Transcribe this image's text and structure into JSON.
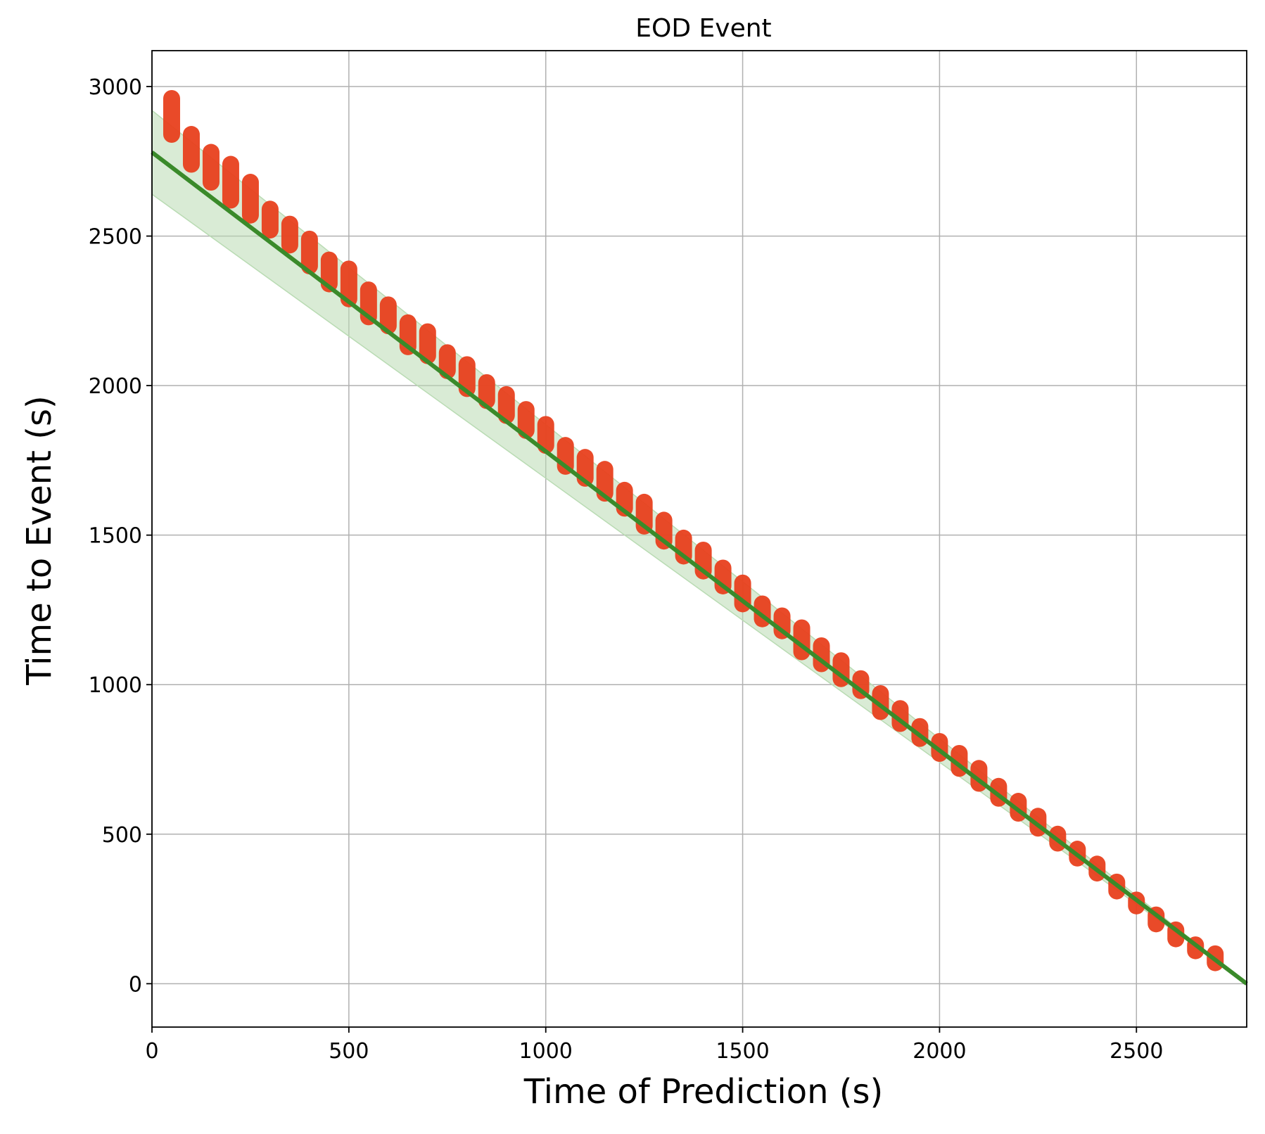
{
  "chart_data": {
    "type": "scatter",
    "title": "EOD Event",
    "xlabel": "Time of Prediction (s)",
    "ylabel": "Time to Event (s)",
    "xlim": [
      0,
      2780
    ],
    "ylim": [
      -145,
      3120
    ],
    "xticks": [
      0,
      500,
      1000,
      1500,
      2000,
      2500
    ],
    "yticks": [
      0,
      500,
      1000,
      1500,
      2000,
      2500,
      3000
    ],
    "grid": true,
    "colors": {
      "scatter": "#e8401e",
      "line": "#3a8a2a",
      "band": "#b9dbb3",
      "grid": "#b0b0b0"
    },
    "true_line": {
      "x": [
        0,
        2780
      ],
      "y": [
        2780,
        0
      ]
    },
    "band": {
      "x": [
        0,
        2780
      ],
      "upper": [
        2920,
        0
      ],
      "lower": [
        2640,
        0
      ]
    },
    "scatter_series": {
      "x": [
        50,
        100,
        150,
        200,
        250,
        300,
        350,
        400,
        450,
        500,
        550,
        600,
        650,
        700,
        750,
        800,
        850,
        900,
        950,
        1000,
        1050,
        1100,
        1150,
        1200,
        1250,
        1300,
        1350,
        1400,
        1450,
        1500,
        1550,
        1600,
        1650,
        1700,
        1750,
        1800,
        1850,
        1900,
        1950,
        2000,
        2050,
        2100,
        2150,
        2200,
        2250,
        2300,
        2350,
        2400,
        2450,
        2500,
        2550,
        2600,
        2650,
        2700
      ],
      "y_min": [
        2840,
        2740,
        2680,
        2620,
        2570,
        2520,
        2470,
        2400,
        2340,
        2290,
        2230,
        2200,
        2130,
        2100,
        2050,
        1990,
        1950,
        1900,
        1850,
        1800,
        1730,
        1690,
        1640,
        1590,
        1530,
        1480,
        1430,
        1380,
        1330,
        1270,
        1220,
        1180,
        1110,
        1070,
        1020,
        980,
        910,
        870,
        820,
        770,
        720,
        670,
        620,
        570,
        520,
        470,
        420,
        370,
        310,
        260,
        200,
        150,
        110,
        70
      ],
      "y_max": [
        2960,
        2840,
        2780,
        2740,
        2680,
        2590,
        2540,
        2490,
        2420,
        2390,
        2320,
        2270,
        2210,
        2180,
        2110,
        2070,
        2010,
        1970,
        1920,
        1870,
        1800,
        1760,
        1720,
        1650,
        1610,
        1550,
        1490,
        1450,
        1390,
        1340,
        1270,
        1230,
        1190,
        1130,
        1080,
        1020,
        970,
        920,
        860,
        810,
        770,
        720,
        660,
        610,
        560,
        500,
        450,
        400,
        340,
        280,
        230,
        180,
        130,
        100
      ]
    }
  }
}
